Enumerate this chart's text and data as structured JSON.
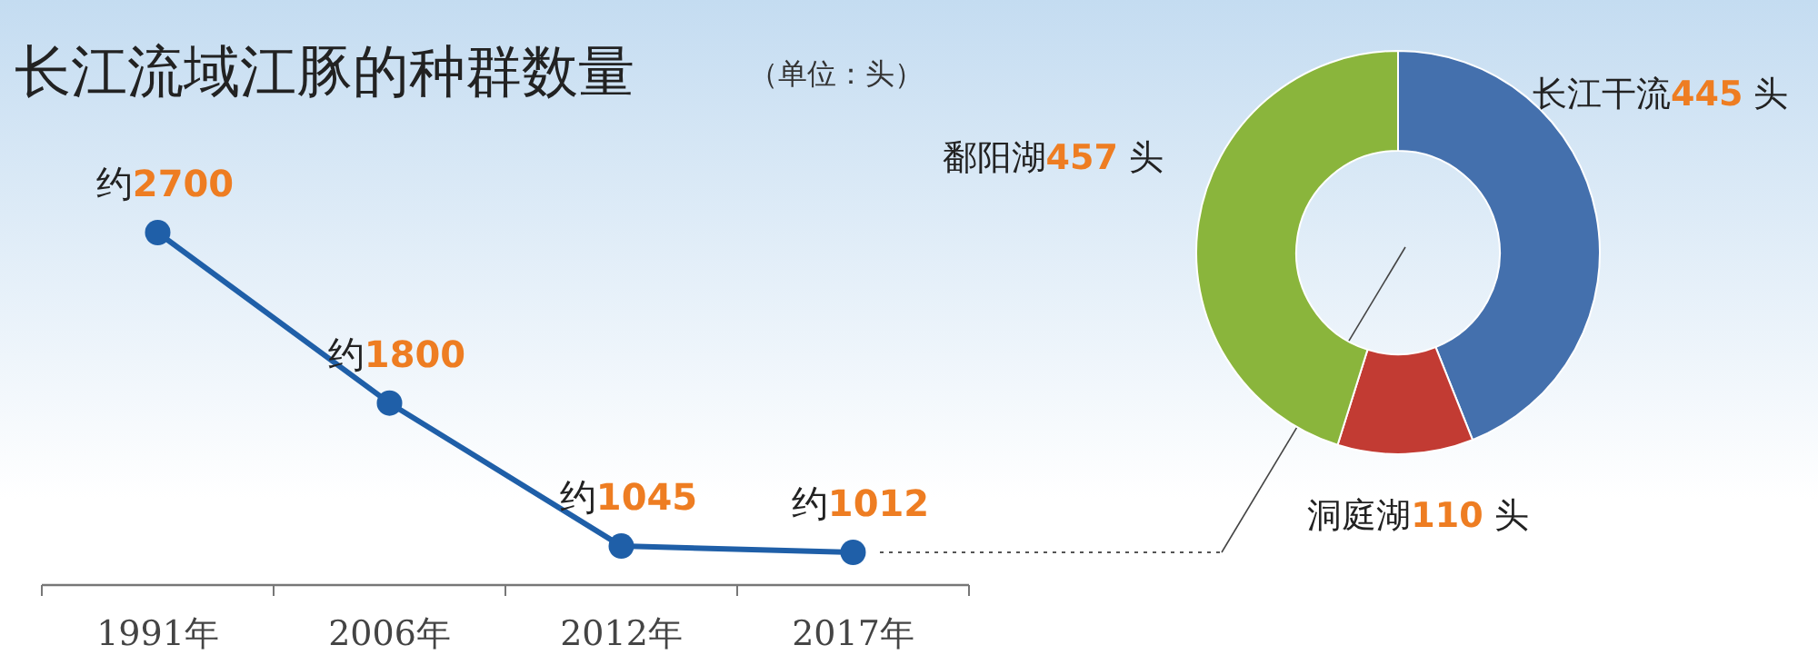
{
  "chart_data": [
    {
      "type": "line",
      "title": "长江流域江豚的种群数量",
      "subtitle": "（单位：头）",
      "categories": [
        "1991年",
        "2006年",
        "2012年",
        "2017年"
      ],
      "series": [
        {
          "color": "#1f5fa8",
          "values": [
            2700,
            1800,
            1045,
            1012
          ],
          "value_labels": [
            "约2700",
            "约1800",
            "约1045",
            "约1012"
          ]
        }
      ],
      "marker": "circle",
      "line_style": "solid"
    },
    {
      "type": "donut",
      "categories": [
        "长江干流",
        "洞庭湖",
        "鄱阳湖"
      ],
      "values": [
        445,
        110,
        457
      ],
      "colors": [
        "#4470ad",
        "#c23b33",
        "#8ab53c"
      ],
      "value_labels": [
        "445 头",
        "110 头",
        "457 头"
      ]
    }
  ]
}
